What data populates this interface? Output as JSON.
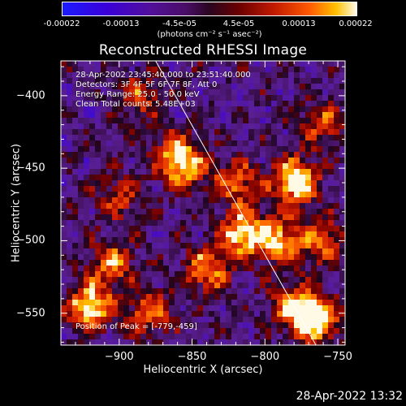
{
  "colorbar": {
    "ticks": [
      "-0.00022",
      "-0.00013",
      "-4.5e-05",
      "4.5e-05",
      "0.00013",
      "0.00022"
    ],
    "unit": "(photons cm⁻² s⁻¹ asec⁻²)"
  },
  "info": {
    "time": "28-Apr-2002 23:45:40.000 to 23:51:40.000",
    "detectors": "Detectors: 3F 4F 5F 6F 7F 8F, Att 0",
    "energy": "Energy Range: 25.0 - 50.0 keV",
    "clean": "Clean     Total counts: 5.48E+03",
    "peak": "Position of Peak = [-779,-459]"
  },
  "timestamp": "28-Apr-2022 13:32",
  "chart_data": {
    "type": "heatmap",
    "title": "Reconstructed RHESSI Image",
    "xlabel": "Heliocentric X (arcsec)",
    "ylabel": "Heliocentric Y (arcsec)",
    "xlim": [
      -940,
      -745
    ],
    "ylim": [
      -572,
      -376
    ],
    "xticks": [
      -900,
      -850,
      -800,
      -750
    ],
    "yticks": [
      -400,
      -450,
      -500,
      -550
    ],
    "colorbar_range": [
      -0.00022,
      0.00022
    ],
    "peak_position": [
      -779,
      -459
    ],
    "limb_line": [
      [
        -875,
        -376
      ],
      [
        -765,
        -572
      ]
    ],
    "colormap": "blue-purple-black-red-yellow-white",
    "bright_sources": [
      {
        "x": -855,
        "y": -450,
        "level": 0.6
      },
      {
        "x": -862,
        "y": -440,
        "level": 0.5
      },
      {
        "x": -779,
        "y": -459,
        "level": 1.0
      },
      {
        "x": -815,
        "y": -495,
        "level": 0.85
      },
      {
        "x": -790,
        "y": -500,
        "level": 0.75
      },
      {
        "x": -820,
        "y": -460,
        "level": 0.6
      },
      {
        "x": -920,
        "y": -545,
        "level": 0.9
      },
      {
        "x": -905,
        "y": -515,
        "level": 0.6
      },
      {
        "x": -880,
        "y": -550,
        "level": 0.6
      },
      {
        "x": -840,
        "y": -520,
        "level": 0.7
      },
      {
        "x": -780,
        "y": -545,
        "level": 0.65
      },
      {
        "x": -765,
        "y": -555,
        "level": 0.9
      },
      {
        "x": -885,
        "y": -400,
        "level": 0.5
      },
      {
        "x": -900,
        "y": -470,
        "level": 0.45
      },
      {
        "x": -760,
        "y": -500,
        "level": 0.55
      },
      {
        "x": -760,
        "y": -420,
        "level": 0.5
      }
    ]
  }
}
